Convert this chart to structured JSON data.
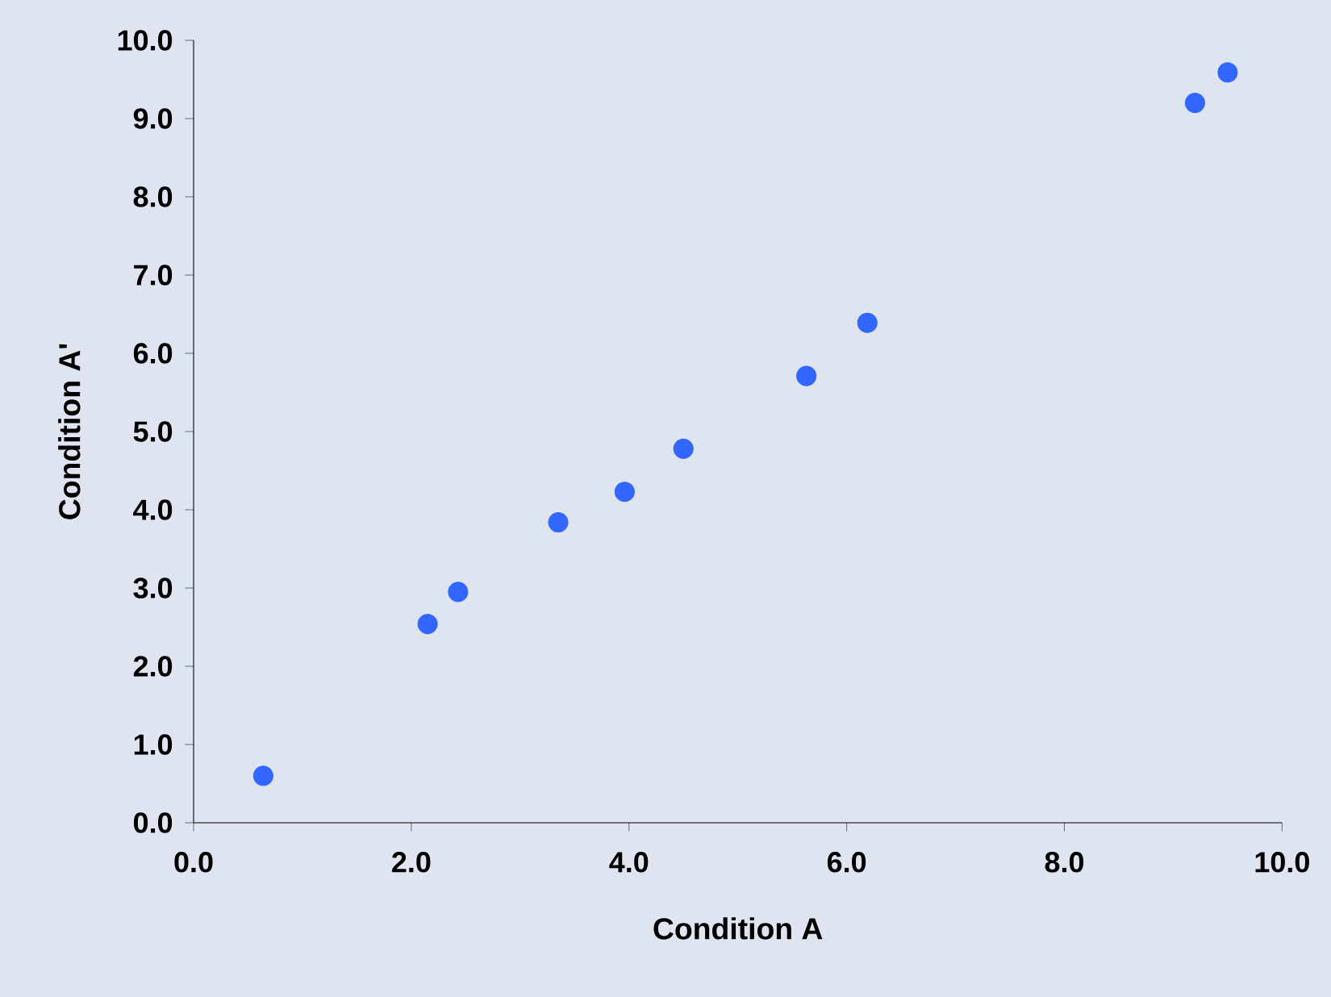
{
  "chart_data": {
    "type": "scatter",
    "xlabel": "Condition A",
    "ylabel": "Condition A'",
    "x": [
      0.64,
      2.15,
      2.43,
      3.35,
      3.96,
      4.5,
      5.63,
      6.19,
      9.2,
      9.5
    ],
    "values": [
      0.6,
      2.54,
      2.95,
      3.84,
      4.23,
      4.78,
      5.71,
      6.39,
      9.2,
      9.59
    ],
    "color": "#3366ff",
    "marker": "circle",
    "xlim": [
      0,
      10
    ],
    "ylim": [
      0,
      10
    ],
    "xticks": [
      {
        "value": 0,
        "label": "0.0"
      },
      {
        "value": 2,
        "label": "2.0"
      },
      {
        "value": 4,
        "label": "4.0"
      },
      {
        "value": 6,
        "label": "6.0"
      },
      {
        "value": 8,
        "label": "8.0"
      },
      {
        "value": 10,
        "label": "10.0"
      }
    ],
    "yticks": [
      {
        "value": 0,
        "label": "0.0"
      },
      {
        "value": 1,
        "label": "1.0"
      },
      {
        "value": 2,
        "label": "2.0"
      },
      {
        "value": 3,
        "label": "3.0"
      },
      {
        "value": 4,
        "label": "4.0"
      },
      {
        "value": 5,
        "label": "5.0"
      },
      {
        "value": 6,
        "label": "6.0"
      },
      {
        "value": 7,
        "label": "7.0"
      },
      {
        "value": 8,
        "label": "8.0"
      },
      {
        "value": 9,
        "label": "9.0"
      },
      {
        "value": 10,
        "label": "10.0"
      }
    ]
  }
}
